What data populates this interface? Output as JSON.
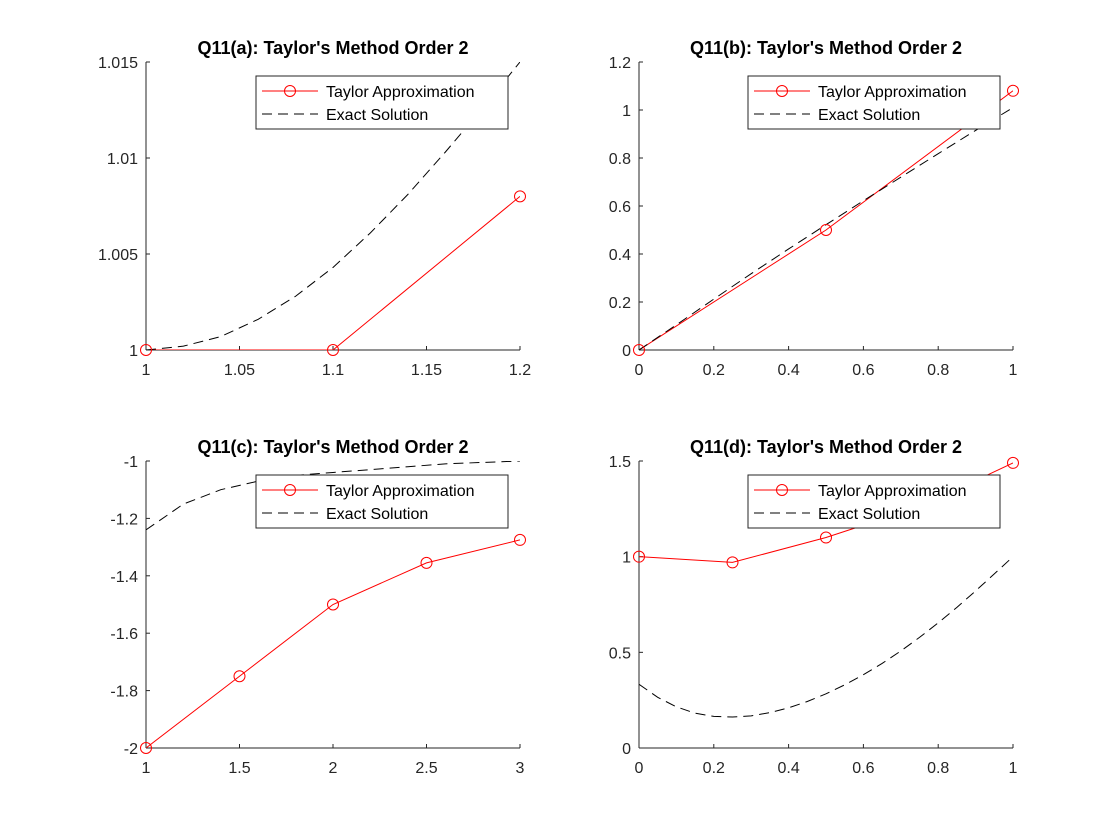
{
  "figure": {
    "background": "#ffffff"
  },
  "colors": {
    "taylor": "#ff0000",
    "exact": "#000000",
    "axis": "#262626"
  },
  "legend_location": "top-right",
  "chart_data": [
    {
      "type": "line",
      "title": "Q11(a): Taylor's Method Order 2",
      "xlim": [
        1,
        1.2
      ],
      "ylim": [
        1,
        1.015
      ],
      "xticks": [
        1,
        1.05,
        1.1,
        1.15,
        1.2
      ],
      "xtick_labels": [
        "1",
        "1.05",
        "1.1",
        "1.15",
        "1.2"
      ],
      "yticks": [
        1,
        1.005,
        1.01,
        1.015
      ],
      "ytick_labels": [
        "1",
        "1.005",
        "1.01",
        "1.015"
      ],
      "grid": false,
      "legend": [
        "Taylor Approximation",
        "Exact Solution"
      ],
      "series": [
        {
          "name": "Taylor Approximation",
          "style": "solid-circle",
          "x": [
            1,
            1.1,
            1.2
          ],
          "y": [
            1,
            1,
            1.008
          ]
        },
        {
          "name": "Exact Solution",
          "style": "dashed",
          "x": [
            1,
            1.02,
            1.04,
            1.06,
            1.08,
            1.1,
            1.12,
            1.14,
            1.16,
            1.18,
            1.2
          ],
          "y": [
            1,
            1.0002,
            1.0007,
            1.0016,
            1.0028,
            1.0043,
            1.0061,
            1.0081,
            1.0103,
            1.0126,
            1.015
          ]
        }
      ]
    },
    {
      "type": "line",
      "title": "Q11(b): Taylor's Method Order 2",
      "xlim": [
        0,
        1
      ],
      "ylim": [
        0,
        1.2
      ],
      "xticks": [
        0,
        0.2,
        0.4,
        0.6,
        0.8,
        1
      ],
      "xtick_labels": [
        "0",
        "0.2",
        "0.4",
        "0.6",
        "0.8",
        "1"
      ],
      "yticks": [
        0,
        0.2,
        0.4,
        0.6,
        0.8,
        1,
        1.2
      ],
      "ytick_labels": [
        "0",
        "0.2",
        "0.4",
        "0.6",
        "0.8",
        "1",
        "1.2"
      ],
      "grid": false,
      "legend": [
        "Taylor Approximation",
        "Exact Solution"
      ],
      "series": [
        {
          "name": "Taylor Approximation",
          "style": "solid-circle",
          "x": [
            0,
            0.5,
            1
          ],
          "y": [
            0,
            0.5,
            1.08
          ]
        },
        {
          "name": "Exact Solution",
          "style": "dashed",
          "x": [
            0,
            0.1,
            0.2,
            0.3,
            0.4,
            0.5,
            0.6,
            0.7,
            0.8,
            0.9,
            1
          ],
          "y": [
            0,
            0.105,
            0.212,
            0.318,
            0.421,
            0.522,
            0.622,
            0.72,
            0.818,
            0.915,
            1.01
          ]
        }
      ]
    },
    {
      "type": "line",
      "title": "Q11(c): Taylor's Method Order 2",
      "xlim": [
        1,
        3
      ],
      "ylim": [
        -2,
        -1
      ],
      "xticks": [
        1,
        1.5,
        2,
        2.5,
        3
      ],
      "xtick_labels": [
        "1",
        "1.5",
        "2",
        "2.5",
        "3"
      ],
      "yticks": [
        -2,
        -1.8,
        -1.6,
        -1.4,
        -1.2,
        -1
      ],
      "ytick_labels": [
        "-2",
        "-1.8",
        "-1.6",
        "-1.4",
        "-1.2",
        "-1"
      ],
      "grid": false,
      "legend": [
        "Taylor Approximation",
        "Exact Solution"
      ],
      "series": [
        {
          "name": "Taylor Approximation",
          "style": "solid-circle",
          "x": [
            1,
            1.5,
            2,
            2.5,
            3
          ],
          "y": [
            -2,
            -1.75,
            -1.5,
            -1.355,
            -1.275
          ]
        },
        {
          "name": "Exact Solution",
          "style": "dashed",
          "x": [
            1,
            1.2,
            1.4,
            1.6,
            1.8,
            2,
            2.2,
            2.4,
            2.6,
            2.8,
            3
          ],
          "y": [
            -1.24,
            -1.15,
            -1.1,
            -1.07,
            -1.05,
            -1.04,
            -1.03,
            -1.02,
            -1.01,
            -1.005,
            -1
          ]
        }
      ]
    },
    {
      "type": "line",
      "title": "Q11(d): Taylor's Method Order 2",
      "xlim": [
        0,
        1
      ],
      "ylim": [
        0,
        1.5
      ],
      "xticks": [
        0,
        0.2,
        0.4,
        0.6,
        0.8,
        1
      ],
      "xtick_labels": [
        "0",
        "0.2",
        "0.4",
        "0.6",
        "0.8",
        "1"
      ],
      "yticks": [
        0,
        0.5,
        1,
        1.5
      ],
      "ytick_labels": [
        "0",
        "0.5",
        "1",
        "1.5"
      ],
      "grid": false,
      "legend": [
        "Taylor Approximation",
        "Exact Solution"
      ],
      "series": [
        {
          "name": "Taylor Approximation",
          "style": "solid-circle",
          "x": [
            0,
            0.25,
            0.5,
            0.75,
            1
          ],
          "y": [
            1,
            0.97,
            1.1,
            1.26,
            1.49
          ]
        },
        {
          "name": "Exact Solution",
          "style": "dashed",
          "x": [
            0,
            0.05,
            0.1,
            0.15,
            0.2,
            0.25,
            0.3,
            0.35,
            0.4,
            0.45,
            0.5,
            0.55,
            0.6,
            0.65,
            0.7,
            0.75,
            0.8,
            0.85,
            0.9,
            0.95,
            1
          ],
          "y": [
            0.333,
            0.265,
            0.215,
            0.182,
            0.165,
            0.162,
            0.168,
            0.185,
            0.21,
            0.243,
            0.283,
            0.33,
            0.383,
            0.442,
            0.507,
            0.578,
            0.654,
            0.735,
            0.821,
            0.91,
            1.0
          ]
        }
      ]
    }
  ]
}
